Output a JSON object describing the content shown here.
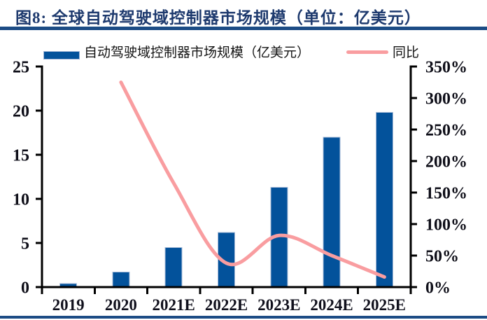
{
  "figure": {
    "title": "图8: 全球自动驾驶域控制器市场规模（单位：亿美元）",
    "accent_color": "#1C4C85"
  },
  "chart_data": {
    "type": "bar+line",
    "title": "全球自动驾驶域控制器市场规模",
    "unit_note": "单位：亿美元",
    "categories": [
      "2019",
      "2020",
      "2021E",
      "2022E",
      "2023E",
      "2024E",
      "2025E"
    ],
    "series": [
      {
        "name": "自动驾驶域控制器市场规模（亿美元）",
        "type": "bar",
        "axis": "left",
        "color": "#03529B",
        "values": [
          0.4,
          1.7,
          4.5,
          6.2,
          11.3,
          17.0,
          19.8
        ]
      },
      {
        "name": "同比",
        "type": "line",
        "axis": "right",
        "color": "#F99DA0",
        "unit": "%",
        "values": [
          null,
          325,
          165,
          38,
          82,
          50,
          16
        ]
      }
    ],
    "left_axis": {
      "min": 0,
      "max": 25,
      "ticks": [
        0,
        5,
        10,
        15,
        20,
        25
      ]
    },
    "right_axis": {
      "min": 0,
      "max": 350,
      "ticks": [
        0,
        50,
        100,
        150,
        200,
        250,
        300,
        350
      ],
      "suffix": "%"
    },
    "legend_position": "top",
    "grid": false
  }
}
